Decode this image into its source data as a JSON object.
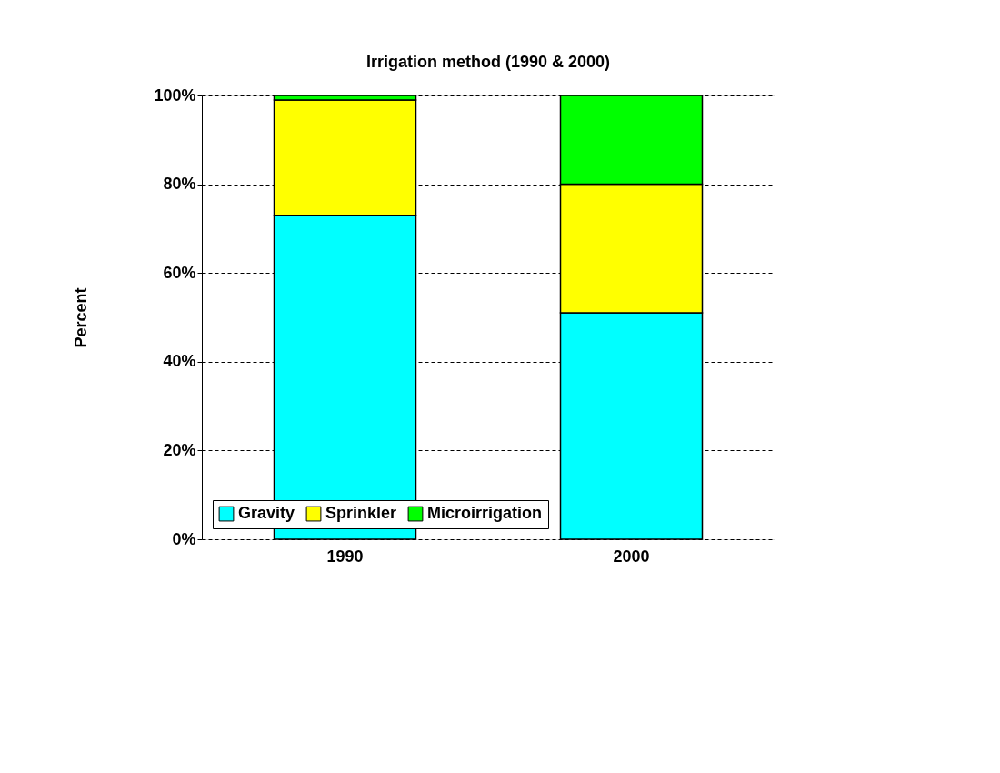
{
  "chart_data": {
    "type": "bar",
    "title": "Irrigation method (1990 & 2000)",
    "ylabel": "Percent",
    "categories": [
      "1990",
      "2000"
    ],
    "stacked": true,
    "series": [
      {
        "name": "Gravity",
        "color": "#00ffff",
        "values": [
          73,
          51
        ]
      },
      {
        "name": "Sprinkler",
        "color": "#ffff00",
        "values": [
          26,
          29
        ]
      },
      {
        "name": "Microirrigation",
        "color": "#00ff00",
        "values": [
          1,
          20
        ]
      }
    ],
    "ylim": [
      0,
      100
    ],
    "yticks": [
      {
        "value": 0,
        "label": "0%"
      },
      {
        "value": 20,
        "label": "20%"
      },
      {
        "value": 40,
        "label": "40%"
      },
      {
        "value": 60,
        "label": "60%"
      },
      {
        "value": 80,
        "label": "80%"
      },
      {
        "value": 100,
        "label": "100%"
      }
    ],
    "grid": "y",
    "legend": "bottom left"
  }
}
